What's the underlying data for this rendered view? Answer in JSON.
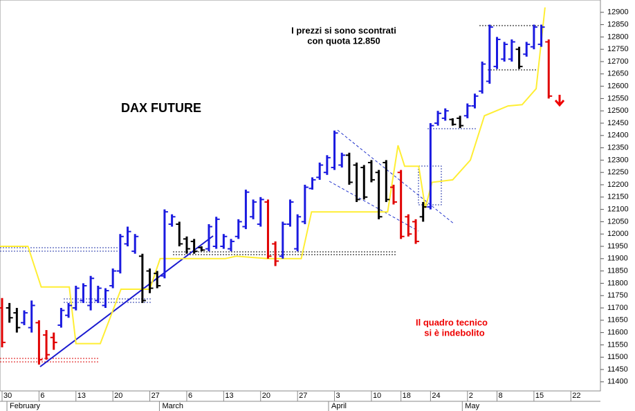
{
  "chart_data": {
    "type": "ohlc",
    "title": "DAX FUTURE",
    "annotations": [
      "I prezzi si sono scontrati",
      "con quota 12.850",
      "Il quadro tecnico",
      "si è indebolito"
    ],
    "x": [
      0,
      1,
      2,
      3,
      4,
      5,
      6,
      7,
      8,
      9,
      10,
      11,
      12,
      13,
      14,
      15,
      16,
      17,
      18,
      19,
      20,
      21,
      22,
      23,
      24,
      25,
      26,
      27,
      28,
      29,
      30,
      31,
      32,
      33,
      34,
      35,
      36,
      37,
      38,
      39,
      40,
      41,
      42,
      43,
      44,
      45,
      46,
      47,
      48,
      49,
      50,
      51,
      52,
      53,
      54,
      55,
      56,
      57,
      58,
      59,
      60,
      61,
      62,
      63,
      64,
      65,
      66,
      67,
      68,
      69,
      70,
      71,
      72,
      73,
      74
    ],
    "open": [
      11700,
      11700,
      11680,
      11640,
      11620,
      11640,
      11590,
      11580,
      11630,
      11670,
      11700,
      11730,
      11710,
      11730,
      11710,
      11790,
      11850,
      11960,
      11930,
      11910,
      11850,
      11840,
      11830,
      12040,
      12040,
      11980,
      11970,
      11945,
      11940,
      11950,
      11950,
      11940,
      11990,
      12030,
      12070,
      12040,
      12130,
      11960,
      11910,
      12040,
      11940,
      12050,
      12185,
      12230,
      12250,
      12270,
      12280,
      12320,
      12280,
      12270,
      12290,
      12250,
      12290,
      12190,
      12250,
      12070,
      12050,
      12070,
      12110,
      12450,
      12470,
      12465,
      12470,
      12480,
      12520,
      12580,
      12620,
      12680,
      12710,
      12710,
      12750,
      12730,
      12760,
      12770,
      12780
    ],
    "high": [
      11740,
      11720,
      11700,
      11690,
      11730,
      11650,
      11610,
      11600,
      11700,
      11720,
      11790,
      11800,
      11830,
      11790,
      11780,
      11860,
      12000,
      12030,
      12000,
      11920,
      11860,
      11850,
      12100,
      12080,
      12050,
      11990,
      11980,
      11950,
      12040,
      12070,
      12000,
      11980,
      12060,
      12180,
      12140,
      12150,
      12140,
      11970,
      12050,
      12140,
      12080,
      12200,
      12230,
      12290,
      12320,
      12420,
      12330,
      12330,
      12290,
      12280,
      12300,
      12260,
      12300,
      12200,
      12260,
      12080,
      12060,
      12130,
      12450,
      12500,
      12510,
      12470,
      12480,
      12530,
      12570,
      12700,
      12850,
      12800,
      12780,
      12790,
      12760,
      12780,
      12850,
      12850,
      12790
    ],
    "low": [
      11540,
      11640,
      11600,
      11630,
      11600,
      11470,
      11490,
      11530,
      11620,
      11660,
      11690,
      11720,
      11690,
      11720,
      11700,
      11780,
      11840,
      11950,
      11920,
      11720,
      11760,
      11780,
      11820,
      12030,
      11950,
      11920,
      11920,
      11930,
      11930,
      11940,
      11940,
      11930,
      11980,
      12020,
      12060,
      12030,
      11900,
      11870,
      11900,
      12030,
      11930,
      12040,
      12180,
      12220,
      12240,
      12260,
      12270,
      12200,
      12130,
      12140,
      12210,
      12060,
      12130,
      12120,
      11980,
      11990,
      11960,
      12050,
      12100,
      12440,
      12460,
      12440,
      12430,
      12470,
      12510,
      12570,
      12610,
      12670,
      12700,
      12700,
      12670,
      12720,
      12750,
      12760,
      12550
    ],
    "close": [
      11560,
      11660,
      11620,
      11680,
      11710,
      11490,
      11510,
      11560,
      11690,
      11710,
      11780,
      11790,
      11820,
      11780,
      11770,
      11850,
      11990,
      12010,
      11990,
      11730,
      11780,
      11790,
      12090,
      12070,
      11960,
      11940,
      11930,
      11935,
      12030,
      12060,
      11990,
      11970,
      12050,
      12170,
      12130,
      12140,
      11910,
      11890,
      12040,
      12130,
      12070,
      12190,
      12220,
      12280,
      12310,
      12410,
      12320,
      12210,
      12140,
      12150,
      12220,
      12070,
      12140,
      12130,
      11990,
      12000,
      11970,
      12110,
      12440,
      12490,
      12500,
      12445,
      12440,
      12520,
      12560,
      12690,
      12840,
      12790,
      12770,
      12780,
      12680,
      12770,
      12840,
      12840,
      12560
    ],
    "colors": [
      "#e00000",
      "#000000",
      "#000000",
      "#1a1ae0",
      "#1a1ae0",
      "#e00000",
      "#e00000",
      "#e00000",
      "#1a1ae0",
      "#1a1ae0",
      "#1a1ae0",
      "#1a1ae0",
      "#1a1ae0",
      "#1a1ae0",
      "#1a1ae0",
      "#1a1ae0",
      "#1a1ae0",
      "#1a1ae0",
      "#1a1ae0",
      "#000000",
      "#000000",
      "#000000",
      "#1a1ae0",
      "#1a1ae0",
      "#000000",
      "#000000",
      "#000000",
      "#000000",
      "#1a1ae0",
      "#1a1ae0",
      "#1a1ae0",
      "#1a1ae0",
      "#1a1ae0",
      "#1a1ae0",
      "#1a1ae0",
      "#1a1ae0",
      "#e00000",
      "#e00000",
      "#1a1ae0",
      "#1a1ae0",
      "#1a1ae0",
      "#1a1ae0",
      "#1a1ae0",
      "#1a1ae0",
      "#1a1ae0",
      "#1a1ae0",
      "#1a1ae0",
      "#000000",
      "#000000",
      "#000000",
      "#000000",
      "#000000",
      "#000000",
      "#e00000",
      "#e00000",
      "#e00000",
      "#e00000",
      "#000000",
      "#1a1ae0",
      "#1a1ae0",
      "#1a1ae0",
      "#000000",
      "#000000",
      "#1a1ae0",
      "#1a1ae0",
      "#1a1ae0",
      "#1a1ae0",
      "#1a1ae0",
      "#1a1ae0",
      "#1a1ae0",
      "#000000",
      "#1a1ae0",
      "#1a1ae0",
      "#1a1ae0",
      "#e00000"
    ],
    "line": {
      "color": "#ffee33",
      "x": [
        -0.28,
        3.5,
        5.3,
        9.1,
        10,
        13.3,
        16.1,
        20,
        21.4,
        30.2,
        31.7,
        36,
        40.5,
        41.9,
        52.2,
        53.6,
        54.5,
        56.4,
        57.3,
        58.2,
        61,
        63.4,
        65.3,
        68.5,
        70.4,
        72.3,
        73.5
      ],
      "values": [
        11950,
        11950,
        11785,
        11785,
        11555,
        11555,
        11776,
        11776,
        11900,
        11900,
        11910,
        11900,
        11900,
        12090,
        12090,
        12360,
        12275,
        12275,
        12105,
        12210,
        12220,
        12300,
        12480,
        12520,
        12525,
        12590,
        12920
      ]
    },
    "xlim": [
      -0.28,
      81
    ],
    "ylim": [
      11363,
      12950
    ],
    "xticks": [
      {
        "value": 0,
        "label": "30"
      },
      {
        "value": 5,
        "label": "6"
      },
      {
        "value": 10,
        "label": "13"
      },
      {
        "value": 15,
        "label": "20"
      },
      {
        "value": 20,
        "label": "27"
      },
      {
        "value": 25,
        "label": "6"
      },
      {
        "value": 30,
        "label": "13"
      },
      {
        "value": 35,
        "label": "20"
      },
      {
        "value": 40,
        "label": "27"
      },
      {
        "value": 45,
        "label": "3"
      },
      {
        "value": 50,
        "label": "10"
      },
      {
        "value": 54,
        "label": "18"
      },
      {
        "value": 58,
        "label": "24"
      },
      {
        "value": 63,
        "label": "2"
      },
      {
        "value": 67,
        "label": "8"
      },
      {
        "value": 72,
        "label": "15"
      },
      {
        "value": 77,
        "label": "22"
      }
    ],
    "month_ticks": [
      {
        "value": 0.66,
        "label": "February"
      },
      {
        "value": 21.3,
        "label": "March"
      },
      {
        "value": 44.2,
        "label": "April"
      },
      {
        "value": 62.3,
        "label": "May"
      }
    ],
    "yticks": [
      11400,
      11450,
      11500,
      11550,
      11600,
      11650,
      11700,
      11750,
      11800,
      11850,
      11900,
      11950,
      12000,
      12050,
      12100,
      12150,
      12200,
      12250,
      12300,
      12350,
      12400,
      12450,
      12500,
      12550,
      12600,
      12650,
      12700,
      12750,
      12800,
      12850,
      12900
    ]
  }
}
